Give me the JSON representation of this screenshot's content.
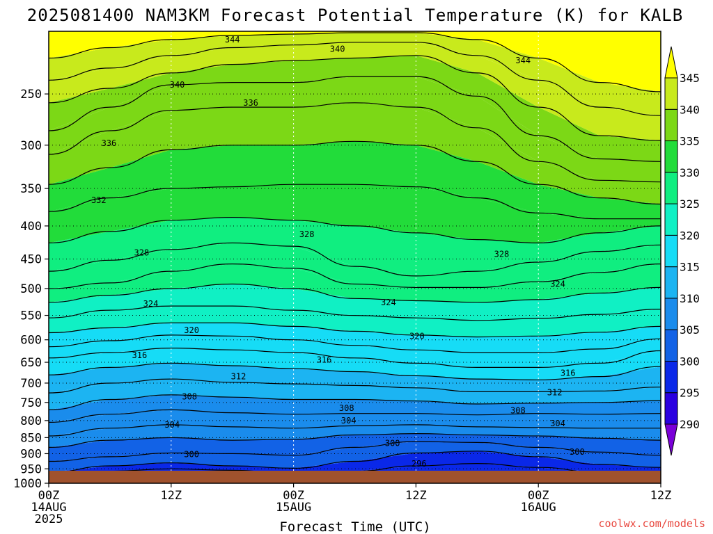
{
  "chart_data": {
    "type": "contour",
    "title": "2025081400 NAM3KM Forecast Potential Temperature (K) for KALB",
    "xlabel": "Forecast Time (UTC)",
    "ylabel": "",
    "credit": "coolwx.com/models",
    "y_scale": "log-pressure",
    "ylim": [
      1000,
      200
    ],
    "y_ticks": [
      250,
      300,
      350,
      400,
      450,
      500,
      550,
      600,
      650,
      700,
      750,
      800,
      850,
      900,
      950,
      1000
    ],
    "x_range_hours": [
      0,
      60
    ],
    "x_ticks": [
      {
        "hour": 0,
        "lines": [
          "00Z",
          "14AUG",
          "2025"
        ]
      },
      {
        "hour": 12,
        "lines": [
          "12Z"
        ]
      },
      {
        "hour": 24,
        "lines": [
          "00Z",
          "15AUG"
        ]
      },
      {
        "hour": 36,
        "lines": [
          "12Z"
        ]
      },
      {
        "hour": 48,
        "lines": [
          "00Z",
          "16AUG"
        ]
      },
      {
        "hour": 60,
        "lines": [
          "12Z"
        ]
      }
    ],
    "colorbar": {
      "levels": [
        290,
        295,
        300,
        305,
        310,
        315,
        320,
        325,
        330,
        335,
        340,
        345
      ],
      "colors": [
        "#7a00d8",
        "#2a00e0",
        "#0a28e8",
        "#1262e6",
        "#1a8cec",
        "#1cb4f2",
        "#16dcf6",
        "#10f0c4",
        "#10ee80",
        "#22dc3a",
        "#7cd816",
        "#c8ea1c",
        "#ffff00"
      ]
    },
    "grid": true,
    "ground_color": "#a0522d",
    "isentropes": [
      {
        "theta": 294,
        "p": [
          1000,
          990,
          985,
          988,
          995,
          1000,
          1000,
          1000,
          1000,
          1000,
          1000
        ]
      },
      {
        "theta": 296,
        "p": [
          1000,
          975,
          968,
          972,
          985,
          990,
          975,
          960,
          972,
          990,
          1000
        ]
      },
      {
        "theta": 298,
        "p": [
          985,
          958,
          950,
          955,
          968,
          958,
          940,
          932,
          945,
          962,
          975
        ]
      },
      {
        "theta": 300,
        "p": [
          962,
          940,
          930,
          940,
          948,
          925,
          898,
          892,
          910,
          935,
          945
        ]
      },
      {
        "theta": 302,
        "p": [
          925,
          910,
          898,
          900,
          905,
          880,
          862,
          865,
          880,
          895,
          905
        ]
      },
      {
        "theta": 304,
        "p": [
          880,
          858,
          850,
          858,
          855,
          842,
          838,
          842,
          845,
          852,
          858
        ]
      },
      {
        "theta": 306,
        "p": [
          845,
          822,
          812,
          818,
          822,
          815,
          812,
          818,
          820,
          822,
          822
        ]
      },
      {
        "theta": 308,
        "p": [
          805,
          782,
          770,
          778,
          782,
          780,
          780,
          784,
          780,
          782,
          780
        ]
      },
      {
        "theta": 310,
        "p": [
          770,
          742,
          730,
          736,
          742,
          742,
          746,
          754,
          752,
          750,
          745
        ]
      },
      {
        "theta": 312,
        "p": [
          725,
          700,
          690,
          698,
          702,
          706,
          712,
          722,
          722,
          720,
          710
        ]
      },
      {
        "theta": 314,
        "p": [
          680,
          662,
          652,
          658,
          665,
          672,
          682,
          690,
          692,
          684,
          660
        ]
      },
      {
        "theta": 316,
        "p": [
          640,
          628,
          618,
          622,
          628,
          640,
          652,
          662,
          662,
          652,
          624
        ]
      },
      {
        "theta": 318,
        "p": [
          615,
          602,
          590,
          592,
          600,
          612,
          622,
          628,
          628,
          620,
          598
        ]
      },
      {
        "theta": 320,
        "p": [
          585,
          575,
          565,
          565,
          572,
          582,
          590,
          594,
          592,
          584,
          572
        ]
      },
      {
        "theta": 322,
        "p": [
          555,
          540,
          532,
          532,
          540,
          550,
          555,
          560,
          556,
          548,
          538
        ]
      },
      {
        "theta": 324,
        "p": [
          525,
          512,
          500,
          492,
          500,
          518,
          522,
          525,
          520,
          508,
          498
        ]
      },
      {
        "theta": 326,
        "p": [
          500,
          490,
          470,
          458,
          465,
          492,
          498,
          498,
          488,
          472,
          458
        ]
      },
      {
        "theta": 328,
        "p": [
          470,
          452,
          435,
          425,
          430,
          462,
          478,
          470,
          455,
          438,
          428
        ]
      },
      {
        "theta": 330,
        "p": [
          425,
          408,
          392,
          388,
          392,
          400,
          410,
          420,
          425,
          410,
          400
        ]
      },
      {
        "theta": 332,
        "p": [
          380,
          362,
          350,
          348,
          345,
          345,
          348,
          362,
          382,
          390,
          390
        ]
      },
      {
        "theta": 334,
        "p": [
          345,
          325,
          305,
          300,
          300,
          296,
          300,
          318,
          345,
          362,
          370
        ]
      },
      {
        "theta": 336,
        "p": [
          310,
          285,
          265,
          262,
          262,
          258,
          262,
          282,
          318,
          340,
          342
        ]
      },
      {
        "theta": 338,
        "p": [
          285,
          262,
          242,
          240,
          240,
          235,
          235,
          252,
          290,
          315,
          318
        ]
      },
      {
        "theta": 340,
        "p": [
          258,
          245,
          232,
          225,
          222,
          220,
          218,
          232,
          262,
          290,
          295
        ]
      },
      {
        "theta": 342,
        "p": [
          238,
          228,
          218,
          212,
          210,
          208,
          208,
          218,
          238,
          262,
          270
        ]
      },
      {
        "theta": 344,
        "p": [
          220,
          212,
          206,
          203,
          202,
          201,
          201,
          206,
          220,
          240,
          248
        ]
      }
    ],
    "contour_labels": [
      {
        "text": "344",
        "x": 18,
        "p": 206
      },
      {
        "text": "340",
        "x": 28.3,
        "p": 213
      },
      {
        "text": "344",
        "x": 46.5,
        "p": 222
      },
      {
        "text": "340",
        "x": 12.6,
        "p": 242
      },
      {
        "text": "336",
        "x": 19.8,
        "p": 258
      },
      {
        "text": "336",
        "x": 5.9,
        "p": 298
      },
      {
        "text": "332",
        "x": 4.9,
        "p": 365
      },
      {
        "text": "328",
        "x": 25.3,
        "p": 412
      },
      {
        "text": "328",
        "x": 9.1,
        "p": 440
      },
      {
        "text": "328",
        "x": 44.4,
        "p": 442
      },
      {
        "text": "324",
        "x": 49.9,
        "p": 492
      },
      {
        "text": "324",
        "x": 33.3,
        "p": 525
      },
      {
        "text": "324",
        "x": 10.0,
        "p": 528
      },
      {
        "text": "320",
        "x": 14.0,
        "p": 580
      },
      {
        "text": "320",
        "x": 36.1,
        "p": 592
      },
      {
        "text": "316",
        "x": 8.9,
        "p": 634
      },
      {
        "text": "316",
        "x": 27.0,
        "p": 644
      },
      {
        "text": "316",
        "x": 50.9,
        "p": 675
      },
      {
        "text": "312",
        "x": 18.6,
        "p": 684
      },
      {
        "text": "312",
        "x": 49.6,
        "p": 724
      },
      {
        "text": "308",
        "x": 13.8,
        "p": 735
      },
      {
        "text": "308",
        "x": 29.2,
        "p": 765
      },
      {
        "text": "308",
        "x": 46.0,
        "p": 772
      },
      {
        "text": "304",
        "x": 12.1,
        "p": 812
      },
      {
        "text": "304",
        "x": 29.4,
        "p": 800
      },
      {
        "text": "304",
        "x": 49.9,
        "p": 808
      },
      {
        "text": "300",
        "x": 33.7,
        "p": 867
      },
      {
        "text": "300",
        "x": 14.0,
        "p": 902
      },
      {
        "text": "300",
        "x": 51.8,
        "p": 895
      },
      {
        "text": "296",
        "x": 36.3,
        "p": 933
      }
    ]
  }
}
